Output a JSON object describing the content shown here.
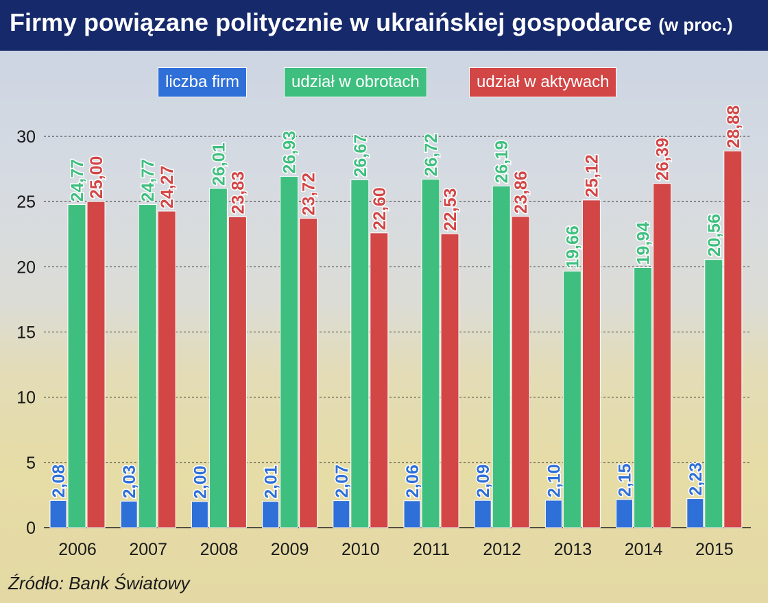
{
  "header": {
    "title": "Firmy powiązane politycznie w ukraińskiej gospodarce",
    "subtitle": "(w proc.)"
  },
  "footer": {
    "source": "Źródło: Bank Światowy"
  },
  "colors": {
    "blue": "#2f6fd8",
    "green": "#3fbf7f",
    "red": "#d24646",
    "title_bg": "#16296b"
  },
  "chart_data": {
    "type": "bar",
    "title": "Firmy powiązane politycznie w ukraińskiej gospodarce (w proc.)",
    "categories": [
      "2006",
      "2007",
      "2008",
      "2009",
      "2010",
      "2011",
      "2012",
      "2013",
      "2014",
      "2015"
    ],
    "series": [
      {
        "name": "liczba firm",
        "values": [
          2.08,
          2.03,
          2.0,
          2.01,
          2.07,
          2.06,
          2.09,
          2.1,
          2.15,
          2.23
        ],
        "labels": [
          "2,08",
          "2,03",
          "2,00",
          "2,01",
          "2,07",
          "2,06",
          "2,09",
          "2,10",
          "2,15",
          "2,23"
        ]
      },
      {
        "name": "udział w obrotach",
        "values": [
          24.77,
          24.77,
          26.01,
          26.93,
          26.67,
          26.72,
          26.19,
          19.66,
          19.94,
          20.56
        ],
        "labels": [
          "24,77",
          "24,77",
          "26,01",
          "26,93",
          "26,67",
          "26,72",
          "26,19",
          "19,66",
          "19,94",
          "20,56"
        ]
      },
      {
        "name": "udział w aktywach",
        "values": [
          25.0,
          24.27,
          23.83,
          23.72,
          22.6,
          22.53,
          23.86,
          25.12,
          26.39,
          28.88
        ],
        "labels": [
          "25,00",
          "24,27",
          "23,83",
          "23,72",
          "22,60",
          "22,53",
          "23,86",
          "25,12",
          "26,39",
          "28,88"
        ]
      }
    ],
    "yticks": [
      "0",
      "5",
      "10",
      "15",
      "20",
      "25",
      "30"
    ],
    "ylim": [
      0,
      30
    ],
    "grid": true,
    "legend_position": "top"
  }
}
